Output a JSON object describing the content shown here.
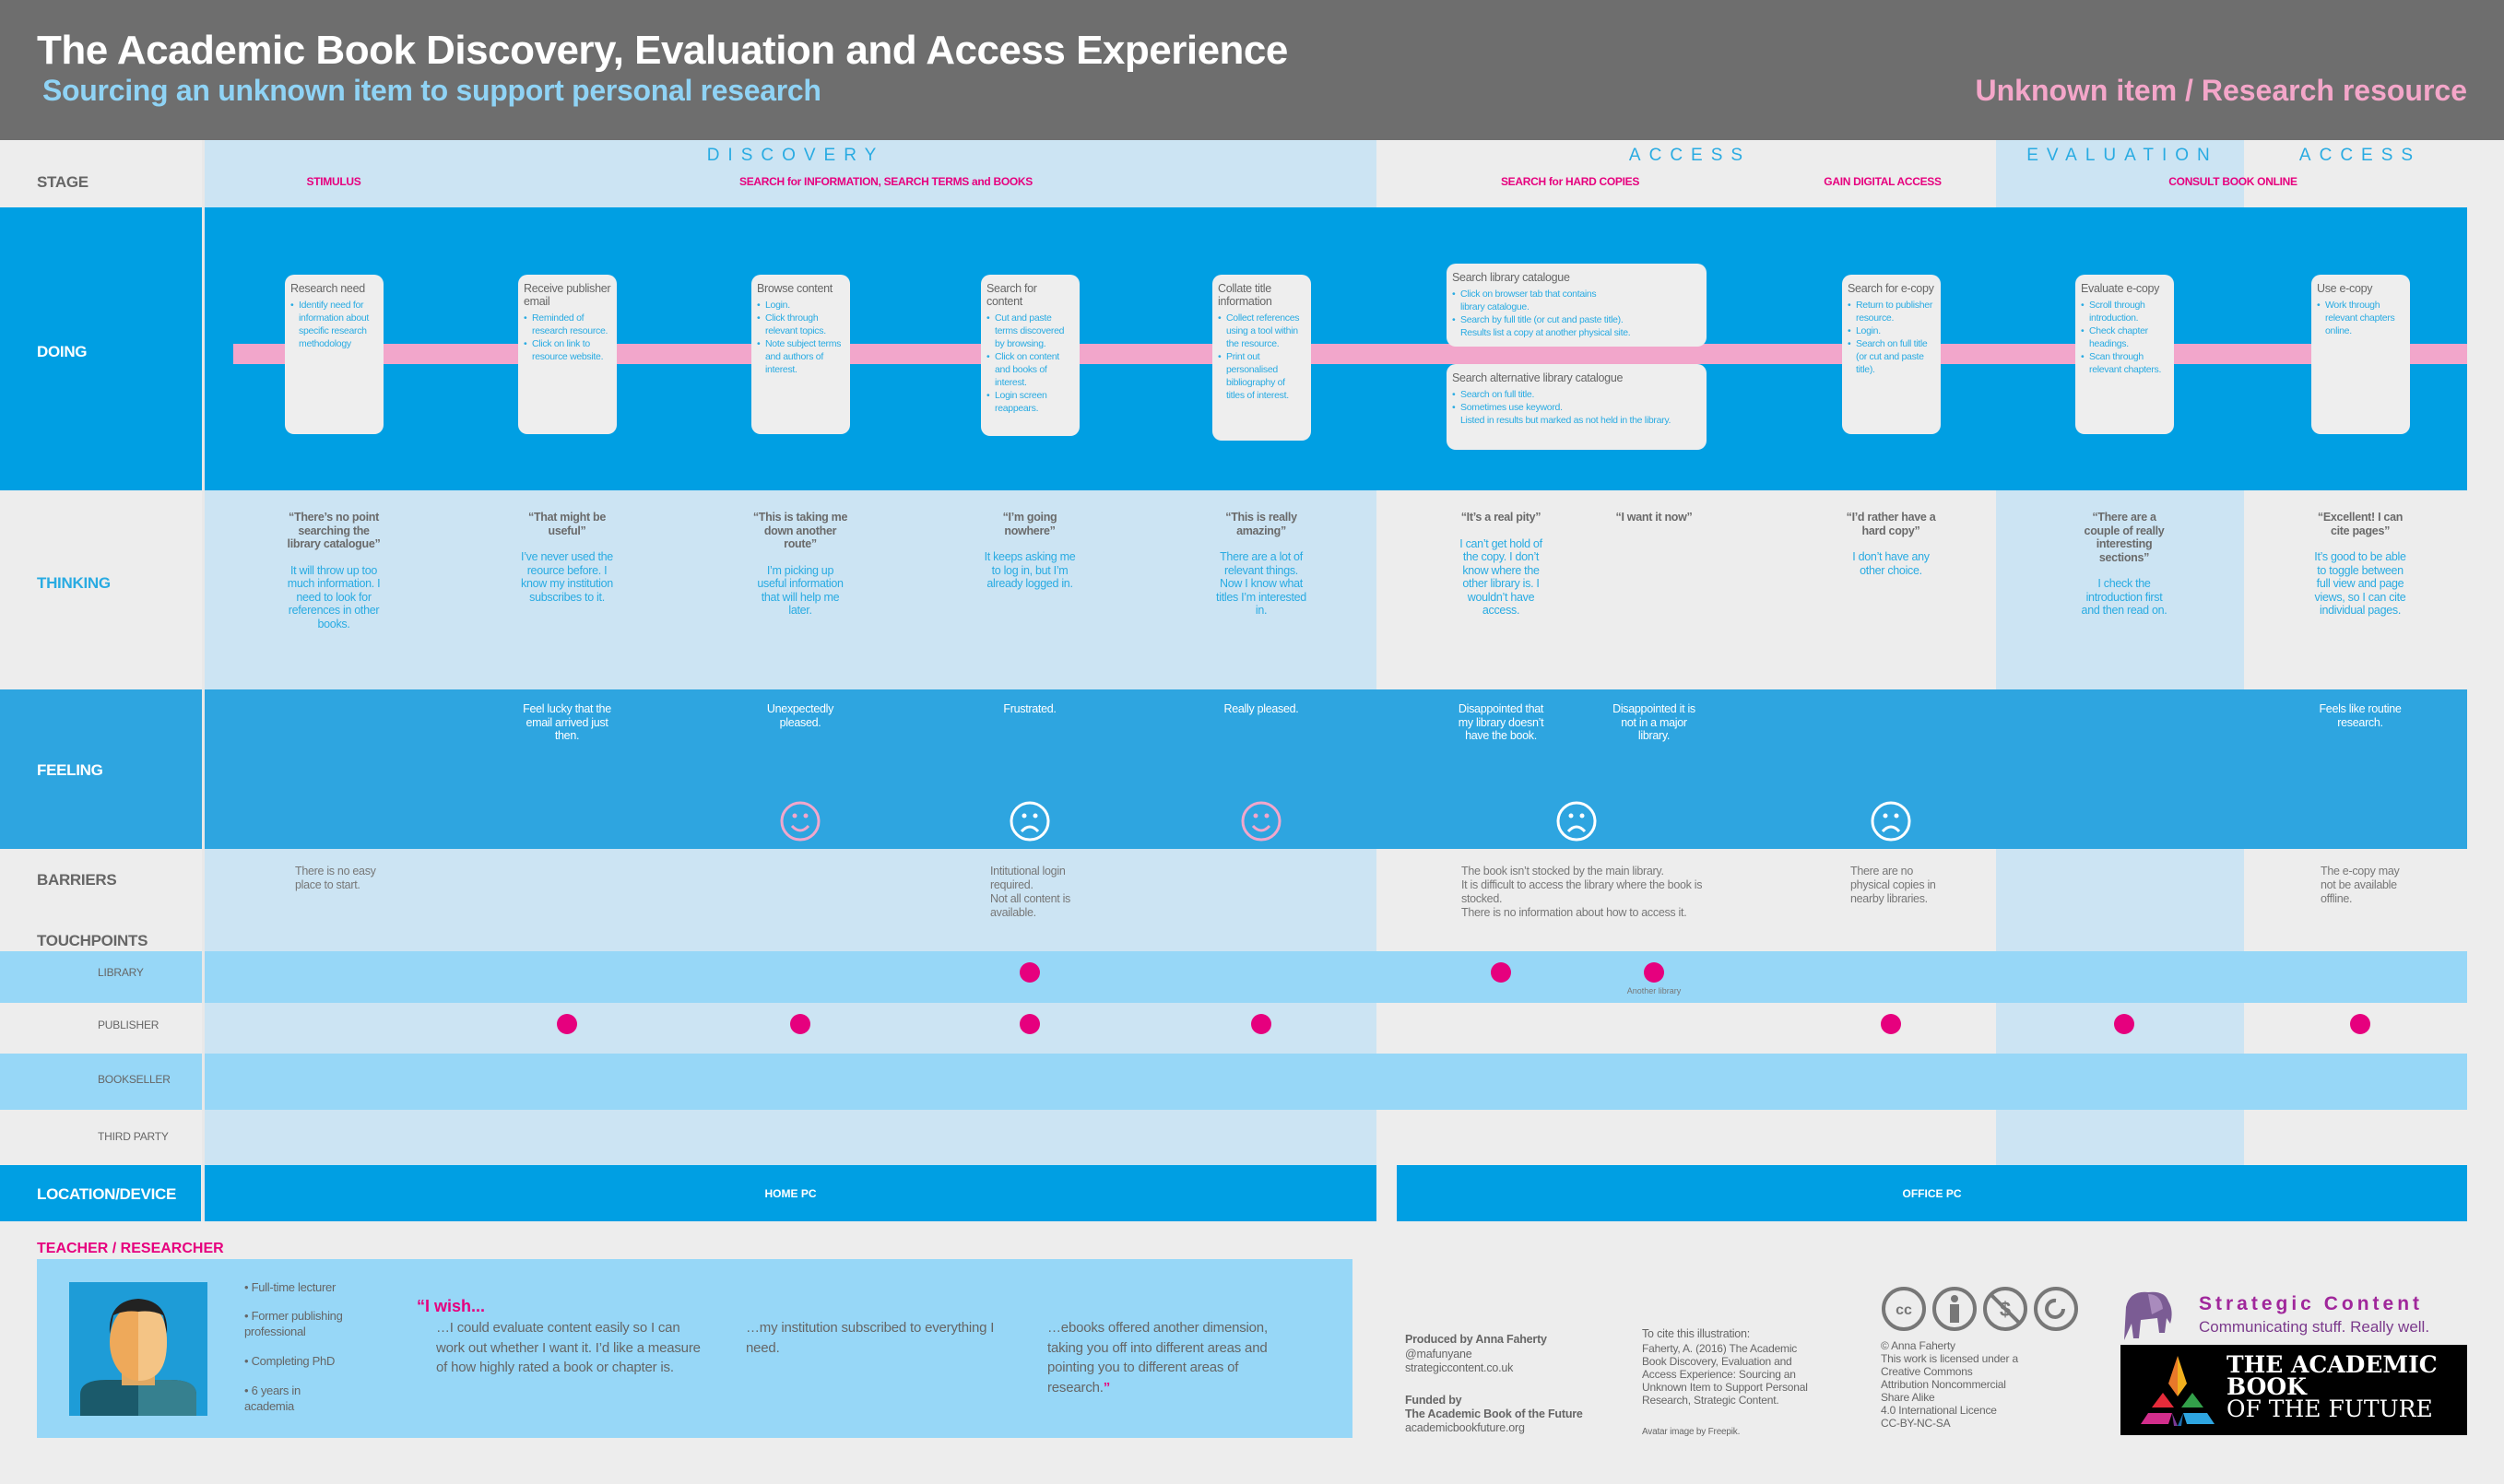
{
  "header": {
    "title": "The Academic Book Discovery, Evaluation and Access Experience",
    "subtitle": "Sourcing an unknown item to support personal research",
    "tag": "Unknown item / Research resource"
  },
  "colors": {
    "header_bg": "#6e6e6e",
    "doing_bg": "#009fe3",
    "feeling_bg": "#2ea5e0",
    "phase_light": "#cce4f3",
    "touch_row": "#97d7f7",
    "accent_pink": "#e6007e",
    "accent_blue": "#29abe2"
  },
  "row_labels": {
    "stage": "STAGE",
    "doing": "DOING",
    "thinking": "THINKING",
    "feeling": "FEELING",
    "barriers": "BARRIERS",
    "touchpoints": "TOUCHPOINTS",
    "location": "LOCATION/DEVICE"
  },
  "phases": [
    "DISCOVERY",
    "ACCESS",
    "EVALUATION",
    "ACCESS"
  ],
  "stages": [
    "STIMULUS",
    "SEARCH for INFORMATION, SEARCH TERMS and BOOKS",
    "SEARCH for HARD COPIES",
    "GAIN DIGITAL ACCESS",
    "CONSULT BOOK ONLINE"
  ],
  "doing": [
    {
      "title": "Research need",
      "bullets": [
        "Identify need for information about specific research methodology"
      ]
    },
    {
      "title": "Receive publisher email",
      "bullets": [
        "Reminded of research resource.",
        "Click on link to resource website."
      ]
    },
    {
      "title": "Browse content",
      "bullets": [
        "Login.",
        "Click through relevant topics.",
        "Note subject terms and authors of interest."
      ]
    },
    {
      "title": "Search for content",
      "bullets": [
        "Cut and paste terms discovered by browsing.",
        "Click on content and books of interest.",
        "Login screen reappears."
      ]
    },
    {
      "title": "Collate title information",
      "bullets": [
        "Collect references using a tool within the resource.",
        "Print out personalised bibliography of titles of interest."
      ]
    },
    {
      "title": "Search library catalogue",
      "bullets": [
        "Click on browser tab that contains\nlibrary catalogue.",
        "Search by full title (or cut and paste title).\nResults list a copy at another physical site."
      ]
    },
    {
      "title": "Search alternative library catalogue",
      "bullets": [
        "Search on full title.",
        "Sometimes use keyword.\nListed in results but marked as not held in the library."
      ]
    },
    {
      "title": "Search for e-copy",
      "bullets": [
        "Return to publisher resource.",
        "Login.",
        "Search on full title (or cut and paste title)."
      ]
    },
    {
      "title": "Evaluate e-copy",
      "bullets": [
        "Scroll through introduction.",
        "Check chapter headings.",
        "Scan through relevant chapters."
      ]
    },
    {
      "title": "Use e-copy",
      "bullets": [
        "Work through relevant chapters online."
      ]
    }
  ],
  "thinking": [
    {
      "quote": "“There’s no point searching the library catalogue”",
      "text": "It will throw up too much information. I need to look for references in other books."
    },
    {
      "quote": "“That might be useful”",
      "text": "I’ve never used the reource before. I know my institution subscribes to it."
    },
    {
      "quote": "“This is taking me down another route”",
      "text": "I’m picking up useful information that will help me later."
    },
    {
      "quote": "“I’m going nowhere”",
      "text": "It keeps asking me to log in, but I’m already logged in."
    },
    {
      "quote": "“This is really amazing”",
      "text": "There are a lot of relevant things. Now I know what titles I’m interested in."
    },
    {
      "quote": "“It’s a real pity”",
      "text": "I can’t get hold of the copy. I don’t know where the other library is. I wouldn’t have access."
    },
    {
      "quote": "“I want it now”",
      "text": ""
    },
    {
      "quote": "“I’d rather have a hard copy”",
      "text": "I don’t have any other choice."
    },
    {
      "quote": "“There are a couple of really interesting sections”",
      "text": "I check the introduction first and then read on."
    },
    {
      "quote": "“Excellent! I can cite pages”",
      "text": "It’s good to be able to toggle between full view and page views, so I can cite individual pages."
    }
  ],
  "feeling": [
    "",
    "Feel lucky that the email arrived just then.",
    "Unexpectedly pleased.",
    "Frustrated.",
    "Really pleased.",
    "Disappointed that my library doesn’t have the book.",
    "Disappointed it is not in a major library.",
    "",
    "",
    "Feels like routine research."
  ],
  "faces": [
    "happy",
    "sad",
    "happy",
    "sad",
    "sad"
  ],
  "barriers": [
    "There is no easy place to start.",
    "Intitutional login required.\nNot all content is available.",
    "The book isn’t stocked by the main library.\nIt is difficult to access the library where the book is stocked.\nThere is no information about how to access it.",
    "There are no physical copies in nearby libraries.",
    "The e-copy may not be available offline."
  ],
  "touchpoints": [
    {
      "label": "LIBRARY",
      "steps": [
        3,
        5,
        6
      ],
      "note": "Another library"
    },
    {
      "label": "PUBLISHER",
      "steps": [
        1,
        2,
        3,
        4,
        7,
        8,
        9
      ]
    },
    {
      "label": "BOOKSELLER",
      "steps": []
    },
    {
      "label": "THIRD PARTY",
      "steps": []
    }
  ],
  "locations": [
    "HOME PC",
    "OFFICE PC"
  ],
  "persona": {
    "label": "TEACHER / RESEARCHER",
    "facts": [
      "Full-time lecturer",
      "Former publishing professional",
      "Completing PhD",
      "6 years in academia"
    ],
    "wish_intro": "“I wish...",
    "wishes": [
      "…I could evaluate content easily so I can work out whether I want it. I’d like a measure of how highly rated a book or chapter is.",
      "…my institution subscribed to everything I need.",
      "…ebooks offered another dimension, taking you off into different areas and pointing you to different areas of research."
    ],
    "close_quote": "”"
  },
  "footer": {
    "produced": "Produced by Anna Faherty",
    "produced_details": "@mafunyane\nstrategiccontent.co.uk",
    "funded": "Funded by\nThe Academic Book of the Future",
    "funded_url": "academicbookfuture.org",
    "cite_intro": "To cite this illustration:",
    "cite": "Faherty, A. (2016) The Academic\nBook Discovery, Evaluation and\nAccess Experience: Sourcing an\nUnknown Item to Support Personal\nResearch, Strategic Content.",
    "avatar_credit": "Avatar image by Freepik.",
    "license": "© Anna Faherty\nThis work is licensed under a\nCreative Commons\nAttribution Noncommercial\nShare Alike\n4.0 International Licence\nCC-BY-NC-SA",
    "sc_logo_name": "Strategic Content",
    "sc_logo_tagline": "Communicating stuff. Really well.",
    "abf_logo": [
      "THE ACADEMIC",
      "BOOK",
      "OF THE FUTURE"
    ]
  }
}
